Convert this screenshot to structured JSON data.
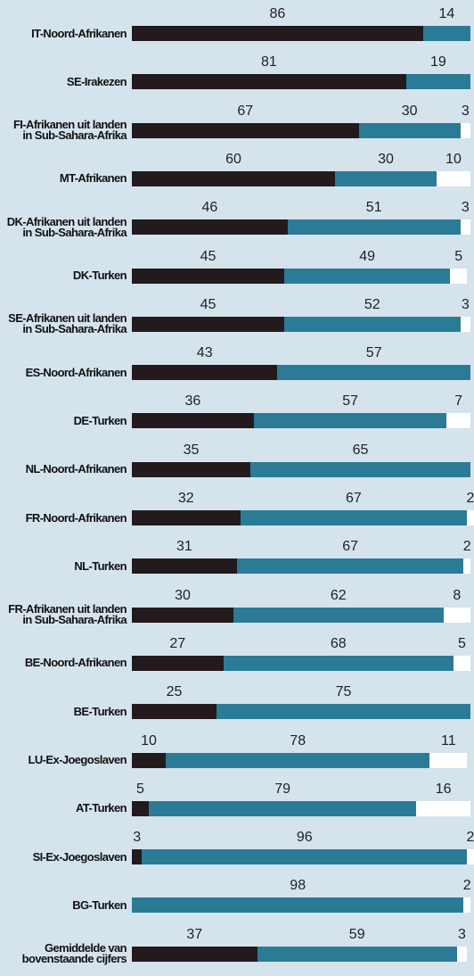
{
  "chart_data": {
    "type": "bar",
    "orientation": "horizontal",
    "stacked": true,
    "xlim": [
      0,
      100
    ],
    "categories": [
      "IT-Noord-Afrikanen",
      "SE-Irakezen",
      "FI-Afrikanen uit landen in Sub-Sahara-Afrika",
      "MT-Afrikanen",
      "DK-Afrikanen uit landen in Sub-Sahara-Afrika",
      "DK-Turken",
      "SE-Afrikanen uit landen in Sub-Sahara-Afrika",
      "ES-Noord-Afrikanen",
      "DE-Turken",
      "NL-Noord-Afrikanen",
      "FR-Noord-Afrikanen",
      "NL-Turken",
      "FR-Afrikanen uit landen in Sub-Sahara-Afrika",
      "BE-Noord-Afrikanen",
      "BE-Turken",
      "LU-Ex-Joegoslaven",
      "AT-Turken",
      "SI-Ex-Joegoslaven",
      "BG-Turken",
      "Gemiddelde van bovenstaande cijfers"
    ],
    "series": [
      {
        "color": "#231a1d",
        "values": [
          86,
          81,
          67,
          60,
          46,
          45,
          45,
          43,
          36,
          35,
          32,
          31,
          30,
          27,
          25,
          10,
          5,
          3,
          null,
          37
        ]
      },
      {
        "color": "#2b7b97",
        "values": [
          14,
          19,
          30,
          30,
          51,
          49,
          52,
          57,
          57,
          65,
          67,
          67,
          62,
          68,
          75,
          78,
          79,
          96,
          98,
          59
        ]
      },
      {
        "color": "#ffffff",
        "values": [
          null,
          null,
          3,
          10,
          3,
          5,
          3,
          null,
          7,
          null,
          2,
          2,
          8,
          5,
          null,
          11,
          16,
          2,
          2,
          3
        ]
      }
    ]
  }
}
